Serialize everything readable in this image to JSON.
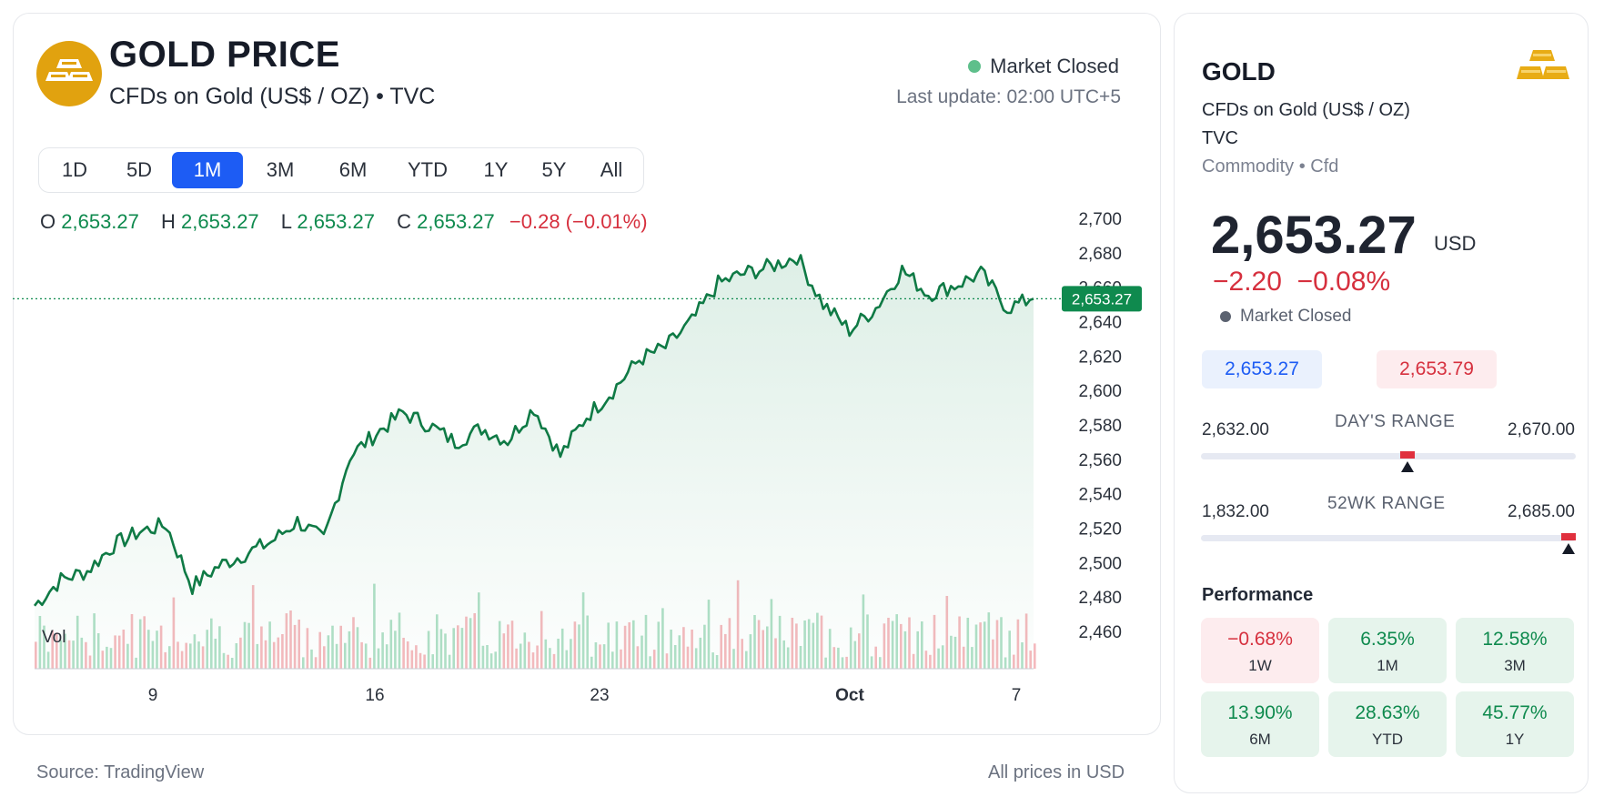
{
  "header": {
    "title": "GOLD PRICE",
    "subtitle": "CFDs on Gold (US$ / OZ) • TVC",
    "market_status": "Market Closed",
    "last_update": "Last update: 02:00 UTC+5",
    "logo_icon": "gold-bars-icon"
  },
  "timeframes": [
    {
      "label": "1D",
      "active": false
    },
    {
      "label": "5D",
      "active": false
    },
    {
      "label": "1M",
      "active": true
    },
    {
      "label": "3M",
      "active": false
    },
    {
      "label": "6M",
      "active": false
    },
    {
      "label": "YTD",
      "active": false
    },
    {
      "label": "1Y",
      "active": false
    },
    {
      "label": "5Y",
      "active": false
    },
    {
      "label": "All",
      "active": false
    }
  ],
  "ohlc": {
    "o_label": "O",
    "o": "2,653.27",
    "h_label": "H",
    "h": "2,653.27",
    "l_label": "L",
    "l": "2,653.27",
    "c_label": "C",
    "c": "2,653.27",
    "change": "−0.28 (−0.01%)"
  },
  "chart_data": {
    "type": "line",
    "series": [
      {
        "values": [
          2475,
          2490,
          2495,
          2510,
          2518,
          2522,
          2486,
          2498,
          2505,
          2512,
          2524,
          2513,
          2562,
          2575,
          2587,
          2580,
          2570,
          2578,
          2571,
          2590,
          2562,
          2585,
          2600,
          2618,
          2625,
          2640,
          2662,
          2668,
          2672,
          2678,
          2650,
          2635,
          2648,
          2670,
          2656,
          2661,
          2668,
          2648,
          2653.27
        ]
      }
    ],
    "x_ticks": [
      "9",
      "16",
      "23",
      "Oct",
      "7"
    ],
    "y_ticks": [
      "2,700",
      "2,680",
      "2,660",
      "2,640",
      "2,620",
      "2,600",
      "2,580",
      "2,560",
      "2,540",
      "2,520",
      "2,500",
      "2,480",
      "2,460"
    ],
    "ylim": [
      2460,
      2700
    ],
    "last_price_label": "2,653.27",
    "volume_label": "Vol",
    "grid": false
  },
  "colors": {
    "up": "#0f8a4e",
    "down": "#d6303e",
    "accent": "#1d5cf4",
    "gold": "#e1a20f"
  },
  "footer": {
    "source": "Source: TradingView",
    "units": "All prices in USD"
  },
  "side": {
    "title": "GOLD",
    "sub1": "CFDs on Gold (US$ / OZ)",
    "sub2": "TVC",
    "category": "Commodity • Cfd",
    "price": "2,653.27",
    "currency": "USD",
    "change": "−2.20  −0.08%",
    "status": "Market Closed",
    "bid": "2,653.27",
    "ask": "2,653.79",
    "days_range": {
      "title": "DAY'S RANGE",
      "low": "2,632.00",
      "high": "2,670.00",
      "position": 0.55
    },
    "wk52_range": {
      "title": "52WK RANGE",
      "low": "1,832.00",
      "high": "2,685.00",
      "position": 0.98
    },
    "performance_title": "Performance",
    "performance": [
      {
        "value": "−0.68%",
        "period": "1W",
        "positive": false
      },
      {
        "value": "6.35%",
        "period": "1M",
        "positive": true
      },
      {
        "value": "12.58%",
        "period": "3M",
        "positive": true
      },
      {
        "value": "13.90%",
        "period": "6M",
        "positive": true
      },
      {
        "value": "28.63%",
        "period": "YTD",
        "positive": true
      },
      {
        "value": "45.77%",
        "period": "1Y",
        "positive": true
      }
    ]
  }
}
